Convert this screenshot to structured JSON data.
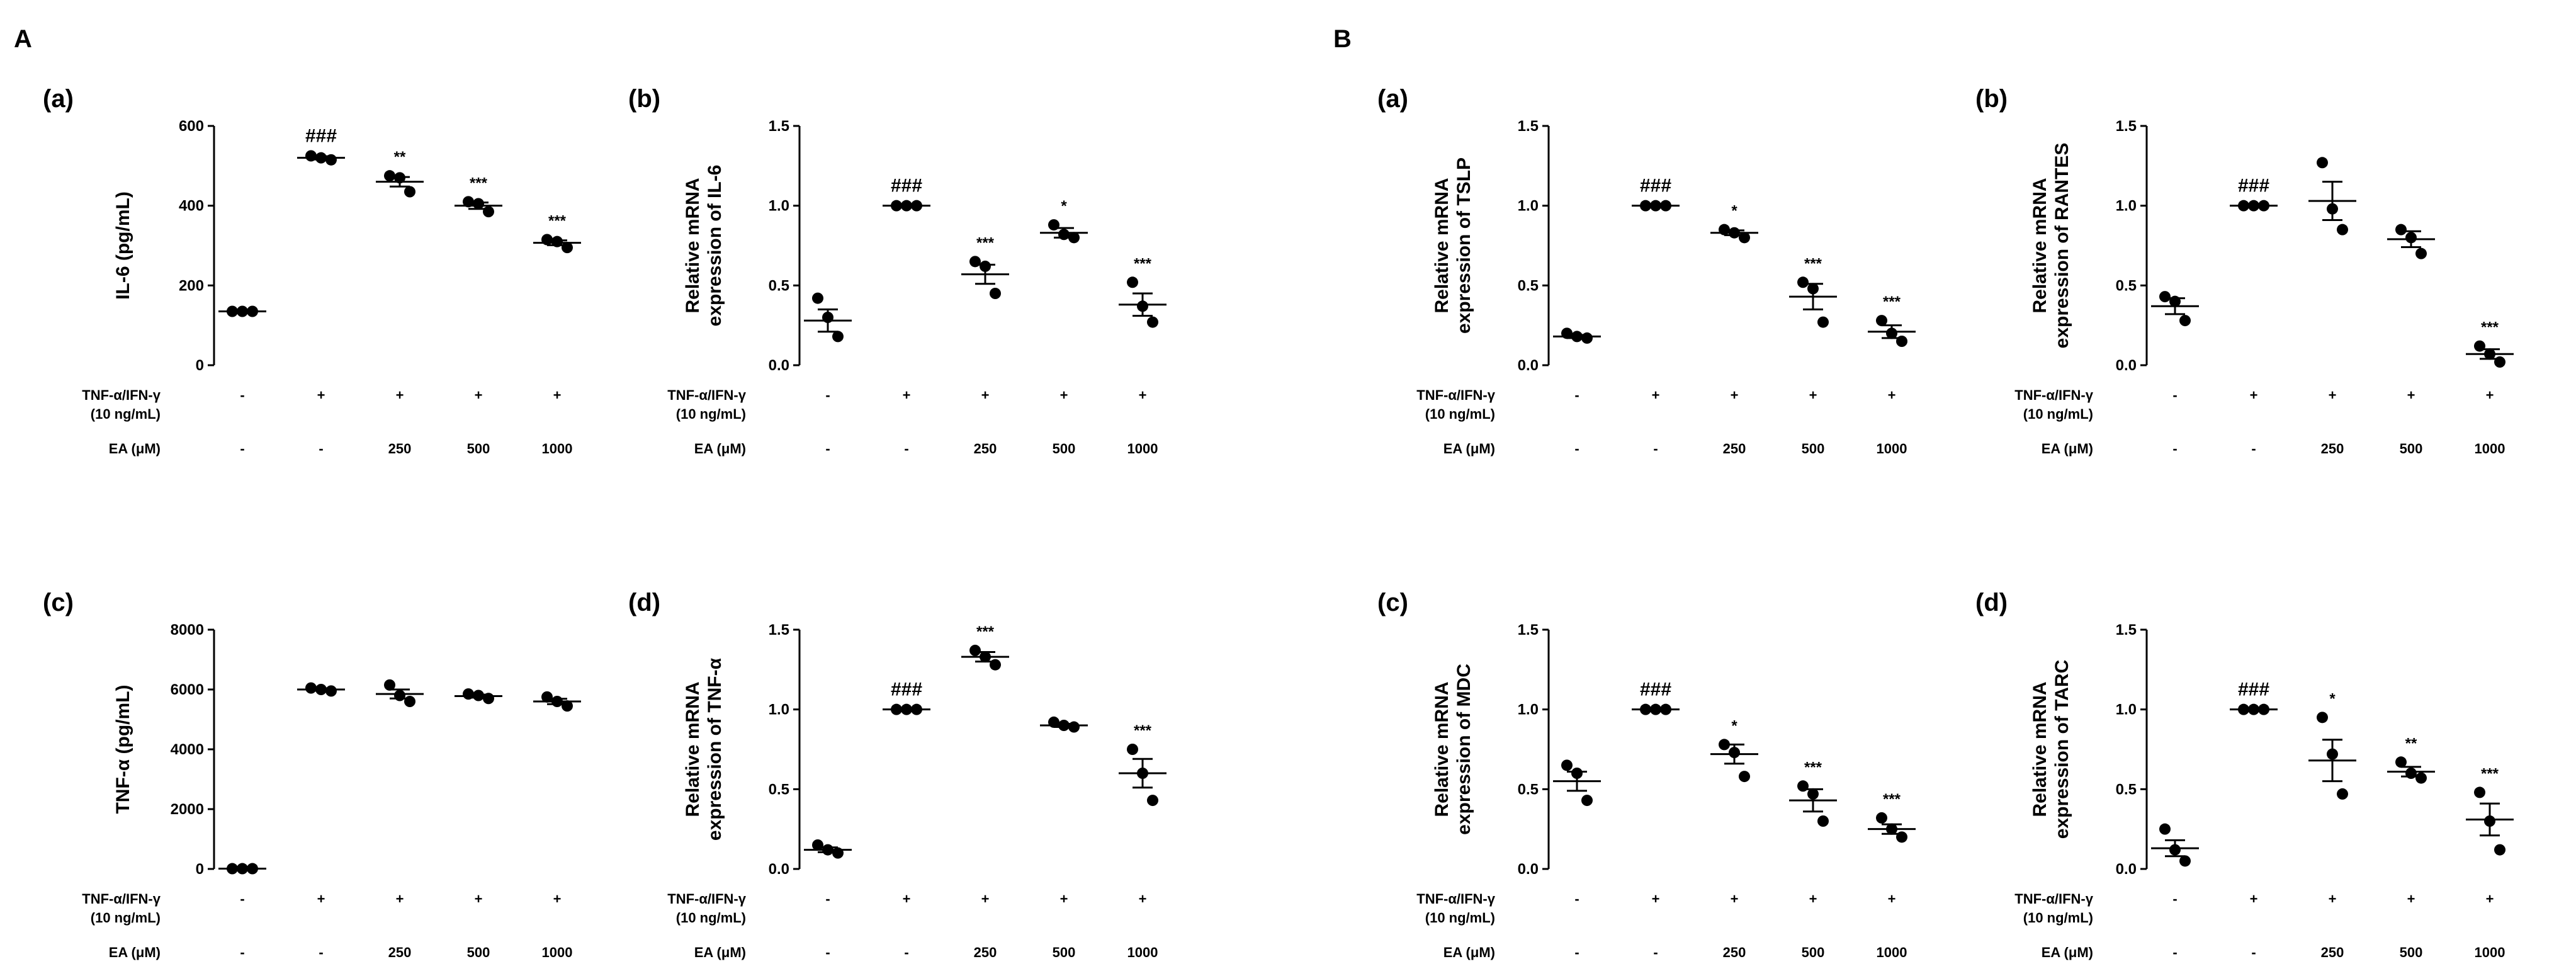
{
  "figure": {
    "section_labels": [
      "A",
      "B"
    ]
  },
  "chart_data": [
    {
      "type": "scatter",
      "section": "A",
      "panel_label": "(a)",
      "ylabel": "IL-6 (pg/mL)",
      "ylim": [
        0,
        600
      ],
      "yticks": [
        0,
        200,
        400,
        600
      ],
      "ytick_labels": [
        "0",
        "200",
        "400",
        "600"
      ],
      "categories": [
        "1",
        "2",
        "3",
        "4",
        "5"
      ],
      "conditions": {
        "row1_label": "TNF-α/IFN-γ",
        "row1_sublabel": "(10 ng/mL)",
        "row1_values": [
          "-",
          "+",
          "+",
          "+",
          "+"
        ],
        "row2_label": "EA (μM)",
        "row2_values": [
          "-",
          "-",
          "250",
          "500",
          "1000"
        ]
      },
      "points": [
        [
          135,
          135,
          135
        ],
        [
          525,
          520,
          515
        ],
        [
          475,
          470,
          435
        ],
        [
          410,
          405,
          385
        ],
        [
          315,
          310,
          295
        ]
      ],
      "means": [
        135,
        520,
        460,
        400,
        307
      ],
      "sem": [
        2,
        4,
        12,
        8,
        6
      ],
      "significance": [
        "",
        "###",
        "**",
        "***",
        "***"
      ]
    },
    {
      "type": "scatter",
      "section": "A",
      "panel_label": "(b)",
      "ylabel": "Relative mRNA expression of IL-6",
      "ylabel_line1": "Relative mRNA",
      "ylabel_line2": "expression of IL-6",
      "ylim": [
        0,
        1.5
      ],
      "yticks": [
        0,
        0.5,
        1.0,
        1.5
      ],
      "ytick_labels": [
        "0.0",
        "0.5",
        "1.0",
        "1.5"
      ],
      "categories": [
        "1",
        "2",
        "3",
        "4",
        "5"
      ],
      "conditions": {
        "row1_label": "TNF-α/IFN-γ",
        "row1_sublabel": "(10 ng/mL)",
        "row1_values": [
          "-",
          "+",
          "+",
          "+",
          "+"
        ],
        "row2_label": "EA (μM)",
        "row2_values": [
          "-",
          "-",
          "250",
          "500",
          "1000"
        ]
      },
      "points": [
        [
          0.42,
          0.3,
          0.18
        ],
        [
          1.0,
          1.0,
          1.0
        ],
        [
          0.65,
          0.62,
          0.45
        ],
        [
          0.88,
          0.82,
          0.8
        ],
        [
          0.52,
          0.37,
          0.27
        ]
      ],
      "means": [
        0.28,
        1.0,
        0.57,
        0.83,
        0.38
      ],
      "sem": [
        0.07,
        0,
        0.06,
        0.03,
        0.07
      ],
      "significance": [
        "",
        "###",
        "***",
        "*",
        "***"
      ]
    },
    {
      "type": "scatter",
      "section": "A",
      "panel_label": "(c)",
      "ylabel": "TNF-α (pg/mL)",
      "ylim": [
        0,
        8000
      ],
      "yticks": [
        0,
        2000,
        4000,
        6000,
        8000
      ],
      "ytick_labels": [
        "0",
        "2000",
        "4000",
        "6000",
        "8000"
      ],
      "categories": [
        "1",
        "2",
        "3",
        "4",
        "5"
      ],
      "conditions": {
        "row1_label": "TNF-α/IFN-γ",
        "row1_sublabel": "(10 ng/mL)",
        "row1_values": [
          "-",
          "+",
          "+",
          "+",
          "+"
        ],
        "row2_label": "EA (μM)",
        "row2_values": [
          "-",
          "-",
          "250",
          "500",
          "1000"
        ]
      },
      "points": [
        [
          10,
          10,
          10
        ],
        [
          6050,
          6000,
          5950
        ],
        [
          6150,
          5800,
          5600
        ],
        [
          5850,
          5800,
          5700
        ],
        [
          5750,
          5600,
          5450
        ]
      ],
      "means": [
        10,
        6000,
        5850,
        5780,
        5600
      ],
      "sem": [
        0,
        40,
        150,
        50,
        90
      ],
      "significance": [
        "",
        "",
        "",
        "",
        ""
      ]
    },
    {
      "type": "scatter",
      "section": "A",
      "panel_label": "(d)",
      "ylabel": "Relative mRNA expression of TNF-α",
      "ylabel_line1": "Relative mRNA",
      "ylabel_line2": "expression of TNF-α",
      "ylim": [
        0,
        1.5
      ],
      "yticks": [
        0,
        0.5,
        1.0,
        1.5
      ],
      "ytick_labels": [
        "0.0",
        "0.5",
        "1.0",
        "1.5"
      ],
      "categories": [
        "1",
        "2",
        "3",
        "4",
        "5"
      ],
      "conditions": {
        "row1_label": "TNF-α/IFN-γ",
        "row1_sublabel": "(10 ng/mL)",
        "row1_values": [
          "-",
          "+",
          "+",
          "+",
          "+"
        ],
        "row2_label": "EA (μM)",
        "row2_values": [
          "-",
          "-",
          "250",
          "500",
          "1000"
        ]
      },
      "points": [
        [
          0.15,
          0.12,
          0.1
        ],
        [
          1.0,
          1.0,
          1.0
        ],
        [
          1.37,
          1.33,
          1.28
        ],
        [
          0.92,
          0.9,
          0.89
        ],
        [
          0.75,
          0.6,
          0.43
        ]
      ],
      "means": [
        0.12,
        1.0,
        1.33,
        0.9,
        0.6
      ],
      "sem": [
        0.015,
        0,
        0.03,
        0.01,
        0.09
      ],
      "significance": [
        "",
        "###",
        "***",
        "",
        "***"
      ]
    },
    {
      "type": "scatter",
      "section": "B",
      "panel_label": "(a)",
      "ylabel": "Relative mRNA expression of TSLP",
      "ylabel_line1": "Relative mRNA",
      "ylabel_line2": "expression of TSLP",
      "ylim": [
        0,
        1.5
      ],
      "yticks": [
        0,
        0.5,
        1.0,
        1.5
      ],
      "ytick_labels": [
        "0.0",
        "0.5",
        "1.0",
        "1.5"
      ],
      "categories": [
        "1",
        "2",
        "3",
        "4",
        "5"
      ],
      "conditions": {
        "row1_label": "TNF-α/IFN-γ",
        "row1_sublabel": "(10 ng/mL)",
        "row1_values": [
          "-",
          "+",
          "+",
          "+",
          "+"
        ],
        "row2_label": "EA (μM)",
        "row2_values": [
          "-",
          "-",
          "250",
          "500",
          "1000"
        ]
      },
      "points": [
        [
          0.2,
          0.18,
          0.17
        ],
        [
          1.0,
          1.0,
          1.0
        ],
        [
          0.85,
          0.83,
          0.8
        ],
        [
          0.52,
          0.48,
          0.27
        ],
        [
          0.28,
          0.2,
          0.15
        ]
      ],
      "means": [
        0.18,
        1.0,
        0.83,
        0.43,
        0.21
      ],
      "sem": [
        0.01,
        0,
        0.015,
        0.08,
        0.04
      ],
      "significance": [
        "",
        "###",
        "*",
        "***",
        "***"
      ]
    },
    {
      "type": "scatter",
      "section": "B",
      "panel_label": "(b)",
      "ylabel": "Relative mRNA expression of RANTES",
      "ylabel_line1": "Relative mRNA",
      "ylabel_line2": "expression of RANTES",
      "ylim": [
        0,
        1.5
      ],
      "yticks": [
        0,
        0.5,
        1.0,
        1.5
      ],
      "ytick_labels": [
        "0.0",
        "0.5",
        "1.0",
        "1.5"
      ],
      "categories": [
        "1",
        "2",
        "3",
        "4",
        "5"
      ],
      "conditions": {
        "row1_label": "TNF-α/IFN-γ",
        "row1_sublabel": "(10 ng/mL)",
        "row1_values": [
          "-",
          "+",
          "+",
          "+",
          "+"
        ],
        "row2_label": "EA (μM)",
        "row2_values": [
          "-",
          "-",
          "250",
          "500",
          "1000"
        ]
      },
      "points": [
        [
          0.43,
          0.4,
          0.28
        ],
        [
          1.0,
          1.0,
          1.0
        ],
        [
          1.27,
          0.98,
          0.85
        ],
        [
          0.85,
          0.8,
          0.7
        ],
        [
          0.12,
          0.07,
          0.02
        ]
      ],
      "means": [
        0.37,
        1.0,
        1.03,
        0.79,
        0.07
      ],
      "sem": [
        0.05,
        0,
        0.12,
        0.05,
        0.03
      ],
      "significance": [
        "",
        "###",
        "",
        "",
        "***"
      ]
    },
    {
      "type": "scatter",
      "section": "B",
      "panel_label": "(c)",
      "ylabel": "Relative mRNA expression of MDC",
      "ylabel_line1": "Relative mRNA",
      "ylabel_line2": "expression of MDC",
      "ylim": [
        0,
        1.5
      ],
      "yticks": [
        0,
        0.5,
        1.0,
        1.5
      ],
      "ytick_labels": [
        "0.0",
        "0.5",
        "1.0",
        "1.5"
      ],
      "categories": [
        "1",
        "2",
        "3",
        "4",
        "5"
      ],
      "conditions": {
        "row1_label": "TNF-α/IFN-γ",
        "row1_sublabel": "(10 ng/mL)",
        "row1_values": [
          "-",
          "+",
          "+",
          "+",
          "+"
        ],
        "row2_label": "EA (μM)",
        "row2_values": [
          "-",
          "-",
          "250",
          "500",
          "1000"
        ]
      },
      "points": [
        [
          0.65,
          0.6,
          0.43
        ],
        [
          1.0,
          1.0,
          1.0
        ],
        [
          0.78,
          0.73,
          0.58
        ],
        [
          0.52,
          0.47,
          0.3
        ],
        [
          0.32,
          0.25,
          0.2
        ]
      ],
      "means": [
        0.55,
        1.0,
        0.72,
        0.43,
        0.25
      ],
      "sem": [
        0.06,
        0,
        0.06,
        0.07,
        0.03
      ],
      "significance": [
        "",
        "###",
        "*",
        "***",
        "***"
      ]
    },
    {
      "type": "scatter",
      "section": "B",
      "panel_label": "(d)",
      "ylabel": "Relative mRNA expression of TARC",
      "ylabel_line1": "Relative mRNA",
      "ylabel_line2": "expression of TARC",
      "ylim": [
        0,
        1.5
      ],
      "yticks": [
        0,
        0.5,
        1.0,
        1.5
      ],
      "ytick_labels": [
        "0.0",
        "0.5",
        "1.0",
        "1.5"
      ],
      "categories": [
        "1",
        "2",
        "3",
        "4",
        "5"
      ],
      "conditions": {
        "row1_label": "TNF-α/IFN-γ",
        "row1_sublabel": "(10 ng/mL)",
        "row1_values": [
          "-",
          "+",
          "+",
          "+",
          "+"
        ],
        "row2_label": "EA (μM)",
        "row2_values": [
          "-",
          "-",
          "250",
          "500",
          "1000"
        ]
      },
      "points": [
        [
          0.25,
          0.12,
          0.05
        ],
        [
          1.0,
          1.0,
          1.0
        ],
        [
          0.95,
          0.72,
          0.47
        ],
        [
          0.67,
          0.6,
          0.57
        ],
        [
          0.48,
          0.3,
          0.12
        ]
      ],
      "means": [
        0.13,
        1.0,
        0.68,
        0.61,
        0.31
      ],
      "sem": [
        0.05,
        0,
        0.13,
        0.03,
        0.1
      ],
      "significance": [
        "",
        "###",
        "*",
        "**",
        "***"
      ]
    }
  ]
}
